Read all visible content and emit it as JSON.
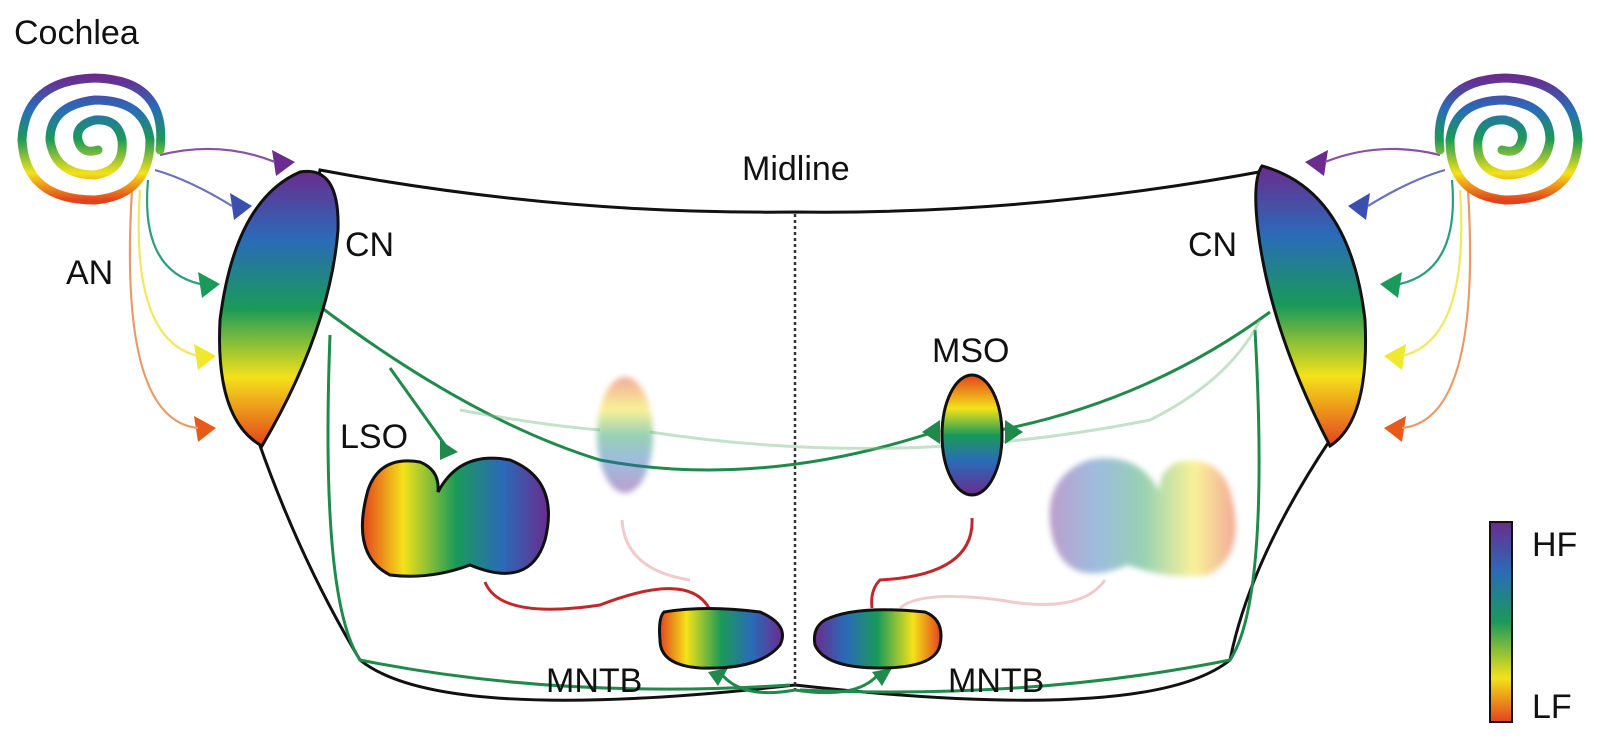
{
  "labels": {
    "cochlea": "Cochlea",
    "midline": "Midline",
    "an": "AN",
    "cn_left": "CN",
    "cn_right": "CN",
    "mso": "MSO",
    "lso": "LSO",
    "mntb_left": "MNTB",
    "mntb_right": "MNTB"
  },
  "legend": {
    "high": "HF",
    "low": "LF"
  },
  "colors": {
    "tonotopy": [
      "#6a2c8e",
      "#3a5fb0",
      "#1e8a82",
      "#1a9a58",
      "#7cc04a",
      "#f4e21a",
      "#f39a1c",
      "#e3421c"
    ],
    "excitatory": "#1f8a4c",
    "inhibitory": "#c0282c",
    "outline": "#111111"
  }
}
